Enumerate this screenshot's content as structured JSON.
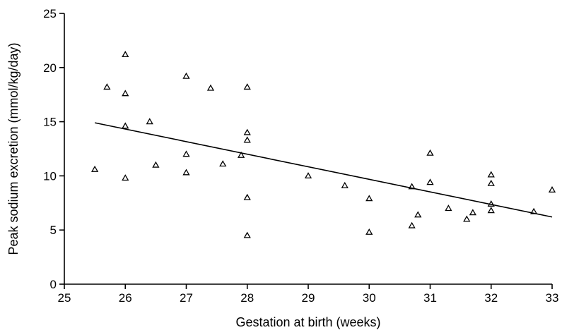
{
  "chart_data": {
    "type": "scatter",
    "xlabel": "Gestation at birth (weeks)",
    "ylabel": "Peak sodium excretion (mmol/kg/day)",
    "xlim": [
      25,
      33
    ],
    "ylim": [
      0,
      25
    ],
    "xticks": [
      "25",
      "26",
      "27",
      "28",
      "29",
      "30",
      "31",
      "32",
      "33"
    ],
    "yticks": [
      "0",
      "5",
      "10",
      "15",
      "20",
      "25"
    ],
    "grid": false,
    "marker": "triangle-open",
    "points": [
      {
        "x": 25.5,
        "y": 10.6
      },
      {
        "x": 25.7,
        "y": 18.2
      },
      {
        "x": 26.0,
        "y": 21.2
      },
      {
        "x": 26.0,
        "y": 17.6
      },
      {
        "x": 26.0,
        "y": 14.6
      },
      {
        "x": 26.0,
        "y": 9.8
      },
      {
        "x": 26.4,
        "y": 15.0
      },
      {
        "x": 26.5,
        "y": 11.0
      },
      {
        "x": 27.0,
        "y": 19.2
      },
      {
        "x": 27.0,
        "y": 12.0
      },
      {
        "x": 27.0,
        "y": 10.3
      },
      {
        "x": 27.4,
        "y": 18.1
      },
      {
        "x": 27.6,
        "y": 11.1
      },
      {
        "x": 27.9,
        "y": 11.9
      },
      {
        "x": 28.0,
        "y": 18.2
      },
      {
        "x": 28.0,
        "y": 14.0
      },
      {
        "x": 28.0,
        "y": 13.3
      },
      {
        "x": 28.0,
        "y": 8.0
      },
      {
        "x": 28.0,
        "y": 4.5
      },
      {
        "x": 29.0,
        "y": 10.0
      },
      {
        "x": 29.6,
        "y": 9.1
      },
      {
        "x": 30.0,
        "y": 7.9
      },
      {
        "x": 30.0,
        "y": 4.8
      },
      {
        "x": 30.7,
        "y": 9.0
      },
      {
        "x": 30.7,
        "y": 5.4
      },
      {
        "x": 30.8,
        "y": 6.4
      },
      {
        "x": 31.0,
        "y": 12.1
      },
      {
        "x": 31.0,
        "y": 9.4
      },
      {
        "x": 31.3,
        "y": 7.0
      },
      {
        "x": 31.6,
        "y": 6.0
      },
      {
        "x": 31.7,
        "y": 6.6
      },
      {
        "x": 32.0,
        "y": 10.1
      },
      {
        "x": 32.0,
        "y": 9.3
      },
      {
        "x": 32.0,
        "y": 7.4
      },
      {
        "x": 32.0,
        "y": 6.8
      },
      {
        "x": 32.7,
        "y": 6.7
      },
      {
        "x": 33.0,
        "y": 8.7
      }
    ],
    "trend_line": {
      "x": [
        25.5,
        33.0
      ],
      "y": [
        14.9,
        6.2
      ]
    }
  }
}
